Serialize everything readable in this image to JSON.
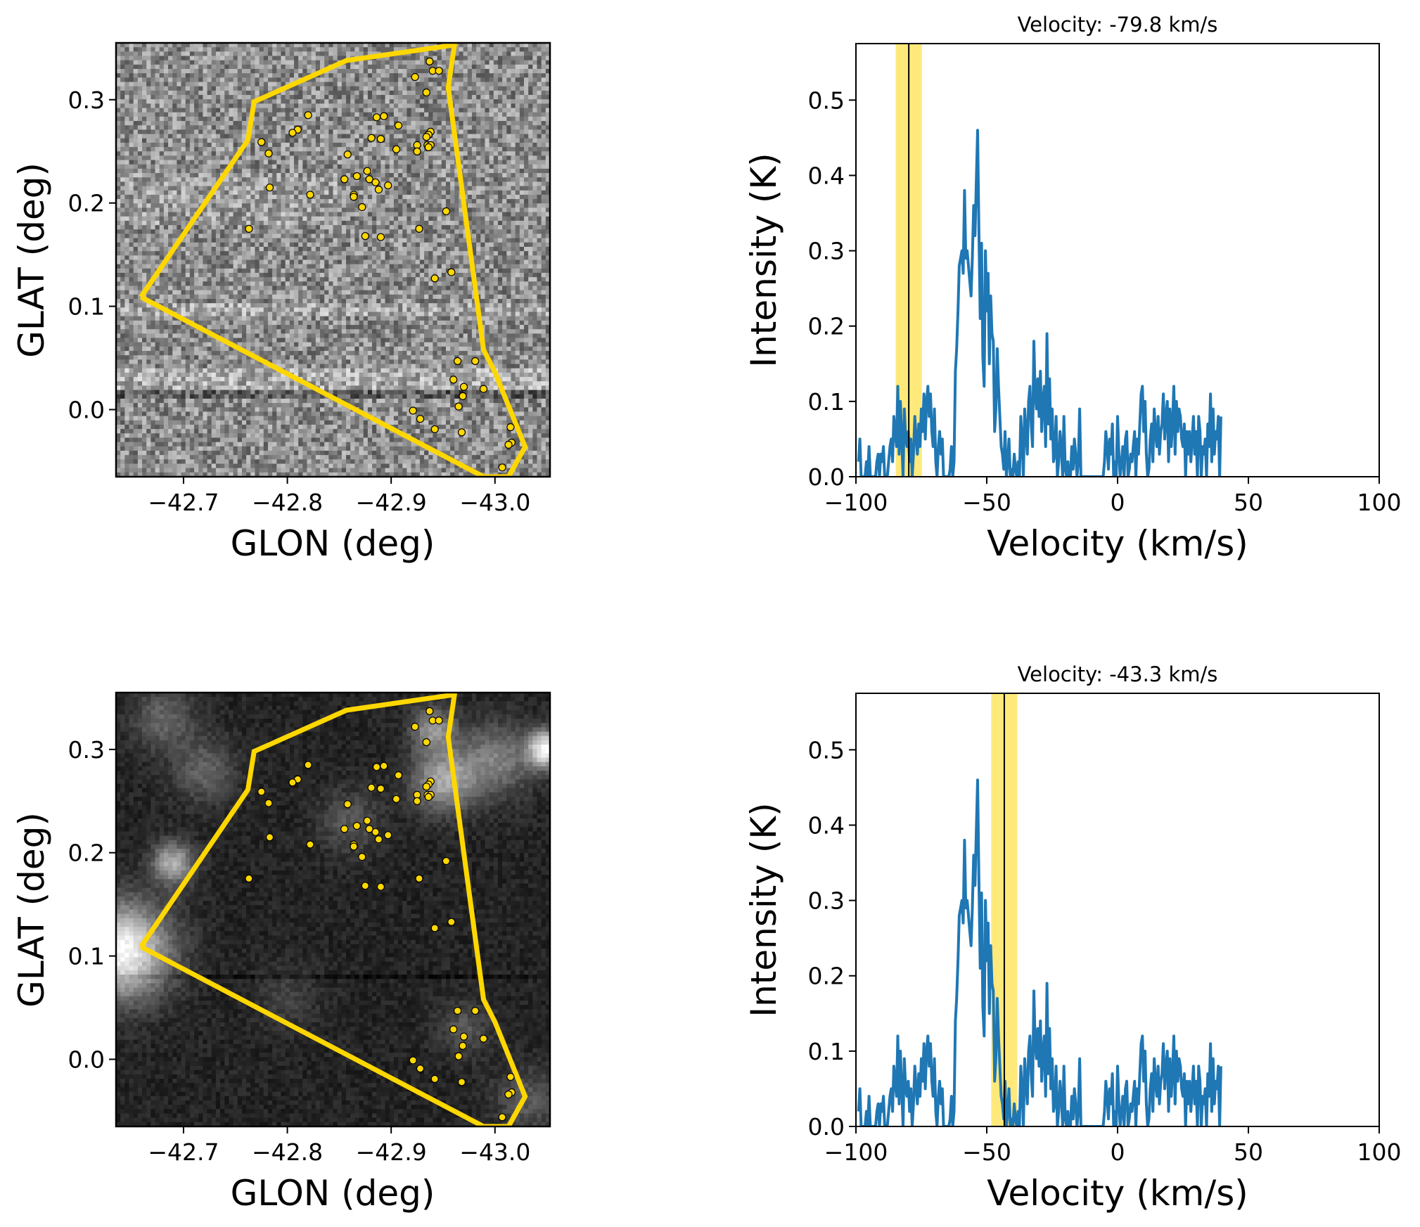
{
  "figure": {
    "colors": {
      "polygon": "#ffd700",
      "markers": "#ffd700",
      "marker_edge": "#000000",
      "spectrum_line": "#1f77b4",
      "band": "#ffe873",
      "vline": "#000000"
    }
  },
  "chart_data": [
    {
      "id": "image-top",
      "type": "heatmap",
      "description": "Noisy grayscale channel map at -79.8 km/s with region polygon and source markers",
      "colormap": "gray",
      "background_style": "noise-mid",
      "xlabel": "GLON (deg)",
      "ylabel": "GLAT (deg)",
      "xlim": [
        -42.635,
        -43.053
      ],
      "ylim": [
        -0.065,
        0.355
      ],
      "xticks": [
        -42.7,
        -42.8,
        -42.9,
        -43.0
      ],
      "xtick_labels": [
        "−42.7",
        "−42.8",
        "−42.9",
        "−43.0"
      ],
      "yticks": [
        0.0,
        0.1,
        0.2,
        0.3
      ],
      "ytick_labels": [
        "0.0",
        "0.1",
        "0.2",
        "0.3"
      ],
      "polygon": [
        [
          -42.659,
          0.109
        ],
        [
          -42.762,
          0.261
        ],
        [
          -42.768,
          0.298
        ],
        [
          -42.857,
          0.338
        ],
        [
          -42.961,
          0.353
        ],
        [
          -42.955,
          0.312
        ],
        [
          -42.989,
          0.058
        ],
        [
          -43.0,
          0.036
        ],
        [
          -43.029,
          -0.036
        ],
        [
          -43.013,
          -0.065
        ],
        [
          -42.989,
          -0.065
        ]
      ],
      "points_ref": "sources"
    },
    {
      "id": "spectrum-top",
      "type": "line",
      "title": "Velocity: -79.8 km/s",
      "xlabel": "Velocity (km/s)",
      "ylabel": "Intensity (K)",
      "xlim": [
        -100,
        100
      ],
      "ylim": [
        0,
        0.575
      ],
      "xticks": [
        -100,
        -50,
        0,
        50,
        100
      ],
      "xtick_labels": [
        "−100",
        "−50",
        "0",
        "50",
        "100"
      ],
      "yticks": [
        0.0,
        0.1,
        0.2,
        0.3,
        0.4,
        0.5
      ],
      "ytick_labels": [
        "0.0",
        "0.1",
        "0.2",
        "0.3",
        "0.4",
        "0.5"
      ],
      "selected_velocity": -79.8,
      "band": [
        -84.8,
        -74.8
      ],
      "series_ref": "spectrum"
    },
    {
      "id": "image-bottom",
      "type": "heatmap",
      "description": "Integrated intensity grayscale map (dark with bright diffuse emission) with region polygon and source markers",
      "colormap": "gray",
      "background_style": "emission-dark",
      "xlabel": "GLON (deg)",
      "ylabel": "GLAT (deg)",
      "xlim": [
        -42.635,
        -43.053
      ],
      "ylim": [
        -0.065,
        0.355
      ],
      "xticks": [
        -42.7,
        -42.8,
        -42.9,
        -43.0
      ],
      "xtick_labels": [
        "−42.7",
        "−42.8",
        "−42.9",
        "−43.0"
      ],
      "yticks": [
        0.0,
        0.1,
        0.2,
        0.3
      ],
      "ytick_labels": [
        "0.0",
        "0.1",
        "0.2",
        "0.3"
      ],
      "polygon": [
        [
          -42.659,
          0.109
        ],
        [
          -42.762,
          0.261
        ],
        [
          -42.768,
          0.298
        ],
        [
          -42.857,
          0.338
        ],
        [
          -42.961,
          0.353
        ],
        [
          -42.955,
          0.312
        ],
        [
          -42.989,
          0.058
        ],
        [
          -43.0,
          0.036
        ],
        [
          -43.029,
          -0.036
        ],
        [
          -43.013,
          -0.065
        ],
        [
          -42.989,
          -0.065
        ]
      ],
      "points_ref": "sources"
    },
    {
      "id": "spectrum-bottom",
      "type": "line",
      "title": "Velocity: -43.3 km/s",
      "xlabel": "Velocity (km/s)",
      "ylabel": "Intensity (K)",
      "xlim": [
        -100,
        100
      ],
      "ylim": [
        0,
        0.575
      ],
      "xticks": [
        -100,
        -50,
        0,
        50,
        100
      ],
      "xtick_labels": [
        "−100",
        "−50",
        "0",
        "50",
        "100"
      ],
      "yticks": [
        0.0,
        0.1,
        0.2,
        0.3,
        0.4,
        0.5
      ],
      "ytick_labels": [
        "0.0",
        "0.1",
        "0.2",
        "0.3",
        "0.4",
        "0.5"
      ],
      "selected_velocity": -43.3,
      "band": [
        -48.3,
        -38.3
      ],
      "series_ref": "spectrum"
    }
  ],
  "sources": [
    [
      -42.937,
      0.337
    ],
    [
      -42.94,
      0.328
    ],
    [
      -42.946,
      0.328
    ],
    [
      -42.923,
      0.322
    ],
    [
      -42.934,
      0.307
    ],
    [
      -42.82,
      0.285
    ],
    [
      -42.886,
      0.283
    ],
    [
      -42.893,
      0.284
    ],
    [
      -42.907,
      0.275
    ],
    [
      -42.81,
      0.271
    ],
    [
      -42.805,
      0.268
    ],
    [
      -42.938,
      0.269
    ],
    [
      -42.936,
      0.266
    ],
    [
      -42.934,
      0.264
    ],
    [
      -42.881,
      0.263
    ],
    [
      -42.89,
      0.262
    ],
    [
      -42.775,
      0.259
    ],
    [
      -42.925,
      0.256
    ],
    [
      -42.935,
      0.256
    ],
    [
      -42.938,
      0.256
    ],
    [
      -42.936,
      0.254
    ],
    [
      -42.905,
      0.252
    ],
    [
      -42.925,
      0.25
    ],
    [
      -42.782,
      0.248
    ],
    [
      -42.858,
      0.247
    ],
    [
      -42.877,
      0.231
    ],
    [
      -42.867,
      0.226
    ],
    [
      -42.855,
      0.223
    ],
    [
      -42.879,
      0.223
    ],
    [
      -42.885,
      0.22
    ],
    [
      -42.897,
      0.217
    ],
    [
      -42.888,
      0.213
    ],
    [
      -42.783,
      0.215
    ],
    [
      -42.822,
      0.208
    ],
    [
      -42.864,
      0.208
    ],
    [
      -42.864,
      0.206
    ],
    [
      -42.872,
      0.196
    ],
    [
      -42.953,
      0.192
    ],
    [
      -42.763,
      0.175
    ],
    [
      -42.927,
      0.175
    ],
    [
      -42.875,
      0.168
    ],
    [
      -42.89,
      0.167
    ],
    [
      -42.958,
      0.133
    ],
    [
      -42.942,
      0.127
    ],
    [
      -42.964,
      0.047
    ],
    [
      -42.981,
      0.047
    ],
    [
      -42.96,
      0.029
    ],
    [
      -42.97,
      0.022
    ],
    [
      -42.989,
      0.02
    ],
    [
      -42.969,
      0.013
    ],
    [
      -42.965,
      0.003
    ],
    [
      -42.921,
      -0.001
    ],
    [
      -42.928,
      -0.009
    ],
    [
      -42.942,
      -0.019
    ],
    [
      -42.968,
      -0.022
    ],
    [
      -43.015,
      -0.017
    ],
    [
      -43.016,
      -0.032
    ],
    [
      -43.013,
      -0.034
    ],
    [
      -43.007,
      -0.056
    ]
  ],
  "spectrum": {
    "name": "Intensity spectrum",
    "v_start": -99,
    "v_step": 0.5,
    "values": [
      0.02,
      0.05,
      0.0,
      0.0,
      0.0,
      0.0,
      0.02,
      0.0,
      0.04,
      0.0,
      0.0,
      0.0,
      0.0,
      0.0,
      0.02,
      0.03,
      0.0,
      0.03,
      0.02,
      0.04,
      0.0,
      0.0,
      0.0,
      0.02,
      0.04,
      0.05,
      0.02,
      0.08,
      0.06,
      0.04,
      0.12,
      0.03,
      0.1,
      0.05,
      0.0,
      0.09,
      0.05,
      0.04,
      0.06,
      0.02,
      0.05,
      0.0,
      0.03,
      0.08,
      0.05,
      0.03,
      0.07,
      0.04,
      0.09,
      0.06,
      0.11,
      0.05,
      0.1,
      0.12,
      0.08,
      0.11,
      0.06,
      0.04,
      0.09,
      0.02,
      0.0,
      0.04,
      0.06,
      0.03,
      0.05,
      0.0,
      0.0,
      0.0,
      0.0,
      0.0,
      0.01,
      0.04,
      0.0,
      0.02,
      0.14,
      0.17,
      0.22,
      0.28,
      0.29,
      0.3,
      0.27,
      0.38,
      0.29,
      0.3,
      0.28,
      0.26,
      0.24,
      0.29,
      0.36,
      0.32,
      0.39,
      0.46,
      0.33,
      0.21,
      0.31,
      0.16,
      0.12,
      0.3,
      0.22,
      0.27,
      0.15,
      0.24,
      0.19,
      0.18,
      0.06,
      0.09,
      0.17,
      0.12,
      0.08,
      0.04,
      0.03,
      0.01,
      0.06,
      0.0,
      0.02,
      0.05,
      0.0,
      0.01,
      0.0,
      0.03,
      0.01,
      0.0,
      0.02,
      0.0,
      0.08,
      0.05,
      0.0,
      0.09,
      0.06,
      0.03,
      0.1,
      0.12,
      0.07,
      0.04,
      0.18,
      0.11,
      0.09,
      0.13,
      0.08,
      0.14,
      0.06,
      0.1,
      0.12,
      0.04,
      0.19,
      0.07,
      0.13,
      0.05,
      0.09,
      0.02,
      0.03,
      0.08,
      0.0,
      0.02,
      0.06,
      0.04,
      0.0,
      0.08,
      0.01,
      0.0,
      0.02,
      0.0,
      0.0,
      0.04,
      0.01,
      0.05,
      0.03,
      0.0,
      0.02,
      0.09,
      0.0,
      0.0,
      0.0,
      0.0,
      0.0,
      0.0,
      0.0,
      0.0,
      0.0,
      0.0,
      0.0,
      0.0,
      0.0,
      0.0,
      0.0,
      0.0,
      0.0,
      0.0,
      0.02,
      0.06,
      0.04,
      0.01,
      0.05,
      0.03,
      0.07,
      0.0,
      0.02,
      0.0,
      0.08,
      0.03,
      0.0,
      0.02,
      0.04,
      0.0,
      0.05,
      0.06,
      0.0,
      0.01,
      0.03,
      0.02,
      0.04,
      0.06,
      0.0,
      0.05,
      0.03,
      0.07,
      0.11,
      0.12,
      0.06,
      0.1,
      0.03,
      0.0,
      0.01,
      0.05,
      0.07,
      0.02,
      0.09,
      0.06,
      0.04,
      0.08,
      0.03,
      0.06,
      0.07,
      0.11,
      0.05,
      0.08,
      0.1,
      0.02,
      0.09,
      0.04,
      0.07,
      0.12,
      0.03,
      0.1,
      0.06,
      0.09,
      0.08,
      0.05,
      0.04,
      0.07,
      0.0,
      0.06,
      0.03,
      0.06,
      0.02,
      0.05,
      0.08,
      0.03,
      0.06,
      0.0,
      0.08,
      0.06,
      0.0,
      0.04,
      0.03,
      0.05,
      0.0,
      0.07,
      0.04,
      0.11,
      0.02,
      0.09,
      0.03,
      0.06,
      0.05,
      0.08,
      0.0,
      0.08
    ]
  }
}
